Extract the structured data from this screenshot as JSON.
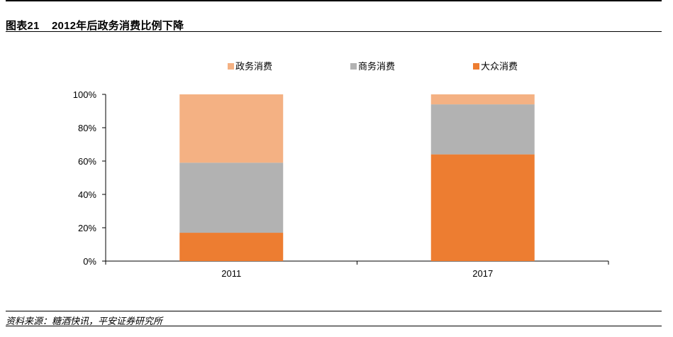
{
  "figure": {
    "label": "图表21",
    "title": "2012年后政务消费比例下降",
    "source": "资料来源：糖酒快讯，平安证券研究所"
  },
  "chart_data": {
    "type": "bar",
    "stacked": true,
    "categories": [
      "2011",
      "2017"
    ],
    "series": [
      {
        "name": "大众消费",
        "color": "#ED7D31",
        "values": [
          17,
          64
        ]
      },
      {
        "name": "商务消费",
        "color": "#B2B2B2",
        "values": [
          42,
          30
        ]
      },
      {
        "name": "政务消费",
        "color": "#F4B183",
        "values": [
          41,
          6
        ]
      }
    ],
    "legend_order": [
      "政务消费",
      "商务消费",
      "大众消费"
    ],
    "legend_position": "top",
    "ylim": [
      0,
      100
    ],
    "yticks": [
      "0%",
      "20%",
      "40%",
      "60%",
      "80%",
      "100%"
    ],
    "grid": false
  }
}
